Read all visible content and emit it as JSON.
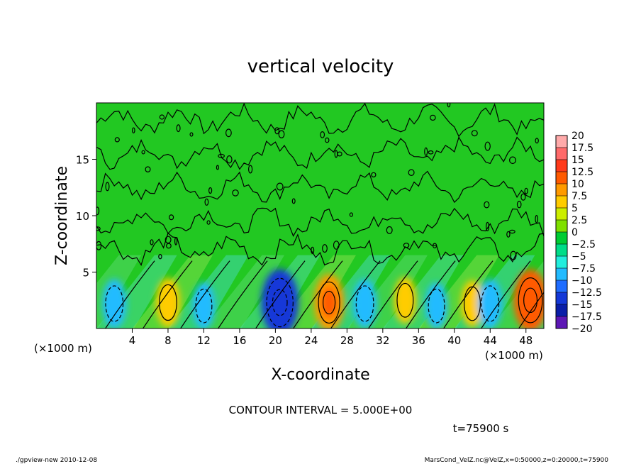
{
  "chart_data": {
    "type": "heatmap",
    "title": "vertical velocity",
    "xlabel": "X-coordinate",
    "ylabel": "Z-coordinate",
    "x_unit_label": "(×1000 m)",
    "y_unit_label": "(×1000 m)",
    "xlim": [
      0,
      50
    ],
    "ylim": [
      0,
      20
    ],
    "x_ticks": [
      "4",
      "8",
      "12",
      "16",
      "20",
      "24",
      "28",
      "32",
      "36",
      "40",
      "44",
      "48"
    ],
    "x_tick_values": [
      4,
      8,
      12,
      16,
      20,
      24,
      28,
      32,
      36,
      40,
      44,
      48
    ],
    "y_ticks": [
      "5",
      "10",
      "15"
    ],
    "y_tick_values": [
      5,
      10,
      15
    ],
    "contour_interval_text": "CONTOUR INTERVAL = 5.000E+00",
    "time_text": "t=75900 s",
    "colorbar": {
      "labels": [
        "20",
        "17.5",
        "15",
        "12.5",
        "10",
        "7.5",
        "5",
        "2.5",
        "0",
        "−2.5",
        "−5",
        "−7.5",
        "−10",
        "−12.5",
        "−15",
        "−17.5",
        "−20"
      ],
      "colors": [
        "#ffaaaa",
        "#ff6a6a",
        "#ff3a1a",
        "#ff5a00",
        "#ff9a00",
        "#ffcc00",
        "#ccee00",
        "#7fe000",
        "#00cc33",
        "#00dd88",
        "#22eedd",
        "#22bbff",
        "#1f6dff",
        "#1438d8",
        "#0a1ea8",
        "#5d17b5"
      ]
    },
    "features": [
      {
        "x": 2.0,
        "z": 2.2,
        "value": -7,
        "kind": "downdraft"
      },
      {
        "x": 8.0,
        "z": 2.3,
        "value": 7,
        "kind": "updraft"
      },
      {
        "x": 12.0,
        "z": 2.0,
        "value": -6,
        "kind": "downdraft"
      },
      {
        "x": 20.5,
        "z": 2.3,
        "value": -14,
        "kind": "downdraft"
      },
      {
        "x": 26.0,
        "z": 2.3,
        "value": 10,
        "kind": "updraft"
      },
      {
        "x": 30.0,
        "z": 2.2,
        "value": -7,
        "kind": "downdraft"
      },
      {
        "x": 34.5,
        "z": 2.5,
        "value": 6,
        "kind": "updraft"
      },
      {
        "x": 38.0,
        "z": 2.0,
        "value": -6,
        "kind": "downdraft"
      },
      {
        "x": 42.0,
        "z": 2.2,
        "value": 6,
        "kind": "updraft"
      },
      {
        "x": 44.0,
        "z": 2.2,
        "value": -7,
        "kind": "downdraft"
      },
      {
        "x": 48.5,
        "z": 2.5,
        "value": 12,
        "kind": "updraft"
      }
    ]
  },
  "footer": {
    "left": "./gpview-new   2010-12-08",
    "right": "MarsCond_VelZ.nc@VelZ,x=0:50000,z=0:20000,t=75900"
  }
}
